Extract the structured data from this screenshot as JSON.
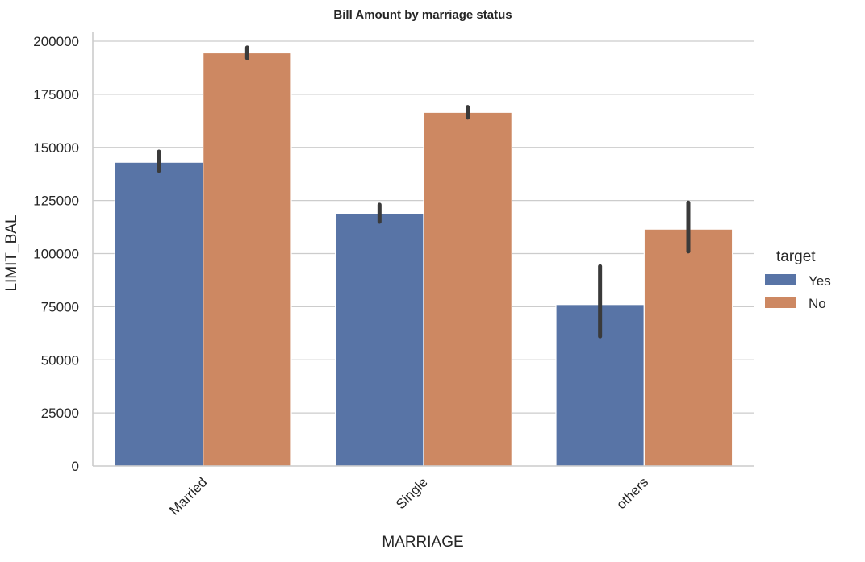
{
  "chart_data": {
    "type": "bar",
    "title": "Bill Amount by marriage status",
    "xlabel": "MARRIAGE",
    "ylabel": "LIMIT_BAL",
    "categories": [
      "Married",
      "Single",
      "others"
    ],
    "ylim": [
      0,
      205000
    ],
    "yticks": [
      0,
      25000,
      50000,
      75000,
      100000,
      125000,
      150000,
      175000,
      200000
    ],
    "grid": "y",
    "legend": {
      "title": "target",
      "placement": "right",
      "entries": [
        "Yes",
        "No"
      ]
    },
    "series": [
      {
        "name": "Yes",
        "color": "#5874a6",
        "values": [
          143000,
          119000,
          76000
        ],
        "ci_low": [
          139000,
          115000,
          61000
        ],
        "ci_high": [
          148000,
          123000,
          94000
        ]
      },
      {
        "name": "No",
        "color": "#cd8862",
        "values": [
          194500,
          166500,
          111500
        ],
        "ci_low": [
          192000,
          164000,
          101000
        ],
        "ci_high": [
          197000,
          169000,
          124000
        ]
      }
    ]
  }
}
